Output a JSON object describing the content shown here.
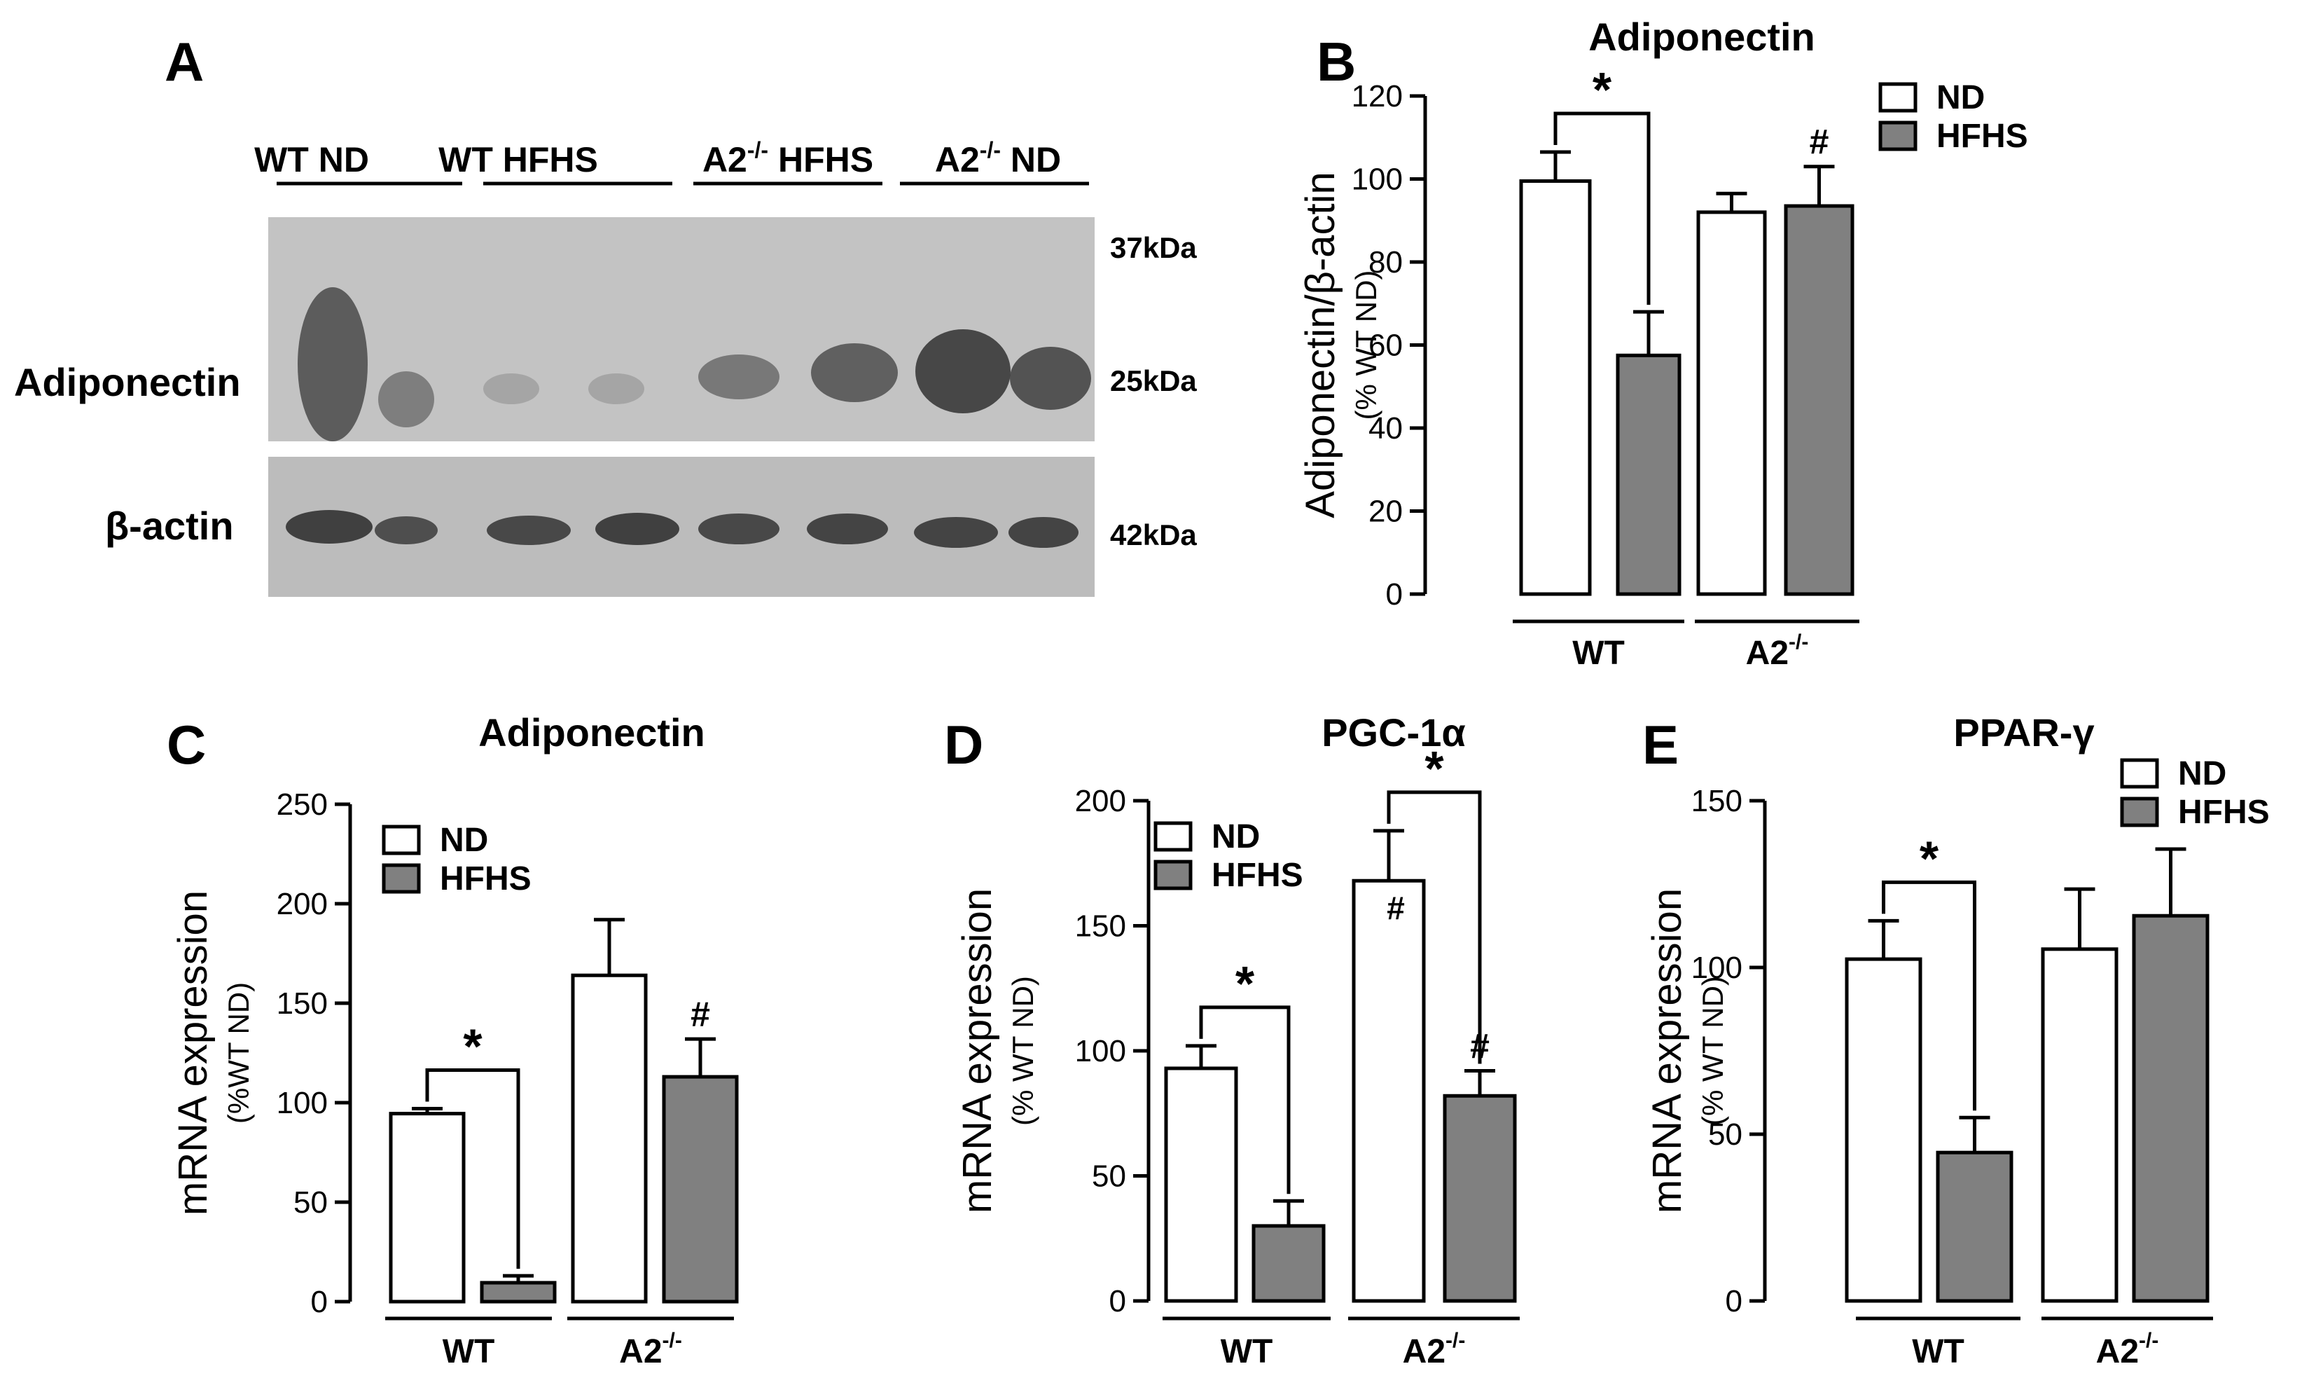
{
  "colors": {
    "nd_fill": "#ffffff",
    "hfhs_fill": "#808080",
    "stroke": "#000000",
    "blot_bg_top": "#c3c3c3",
    "blot_bg_bottom": "#bcbcbc",
    "band": "#3a3a3a"
  },
  "western_blot": {
    "panel_letter": "A",
    "groups": [
      {
        "main": "WT ND",
        "sup": ""
      },
      {
        "main": "WT HFHS",
        "sup": ""
      },
      {
        "main": "A2",
        "sup": "-/-",
        "after": " HFHS"
      },
      {
        "main": "A2",
        "sup": "-/-",
        "after": " ND"
      }
    ],
    "row_labels": [
      "Adiponectin",
      "β-actin"
    ],
    "markers": [
      "37kDa",
      "25kDa",
      "42kDa"
    ]
  },
  "chart_data": [
    {
      "panel": "B",
      "type": "bar",
      "title": "Adiponectin",
      "ylabel": "Adiponectin/β-actin",
      "ylabel2": "(% WT ND)",
      "ylim": [
        0,
        120
      ],
      "yticks": [
        0,
        20,
        40,
        60,
        80,
        100,
        120
      ],
      "groups": [
        {
          "main": "WT",
          "sup": ""
        },
        {
          "main": "A2",
          "sup": "-/-"
        }
      ],
      "legend": [
        "ND",
        "HFHS"
      ],
      "series": [
        {
          "name": "ND",
          "values": [
            99.5,
            92
          ],
          "errors": [
            7,
            4.5
          ]
        },
        {
          "name": "HFHS",
          "values": [
            57.5,
            93.5
          ],
          "errors": [
            10.5,
            9.5
          ]
        }
      ],
      "annotations": [
        {
          "symbol": "*",
          "type": "bracket",
          "group": 0
        },
        {
          "symbol": "#",
          "type": "marker",
          "group": 1,
          "series": 1
        }
      ]
    },
    {
      "panel": "C",
      "type": "bar",
      "title": "Adiponectin",
      "ylabel": "mRNA expression",
      "ylabel2": "(%WT ND)",
      "ylim": [
        0,
        250
      ],
      "yticks": [
        0,
        50,
        100,
        150,
        200,
        250
      ],
      "groups": [
        {
          "main": "WT",
          "sup": ""
        },
        {
          "main": "A2",
          "sup": "-/-"
        }
      ],
      "legend": [
        "ND",
        "HFHS"
      ],
      "series": [
        {
          "name": "ND",
          "values": [
            94.5,
            164
          ],
          "errors": [
            2.5,
            28
          ]
        },
        {
          "name": "HFHS",
          "values": [
            9.5,
            113
          ],
          "errors": [
            3.5,
            19
          ]
        }
      ],
      "annotations": [
        {
          "symbol": "*",
          "type": "bracket",
          "group": 0
        },
        {
          "symbol": "#",
          "type": "marker",
          "group": 1,
          "series": 1
        }
      ]
    },
    {
      "panel": "D",
      "type": "bar",
      "title": "PGC-1α",
      "ylabel": "mRNA expression",
      "ylabel2": "(% WT ND)",
      "ylim": [
        0,
        200
      ],
      "yticks": [
        0,
        50,
        100,
        150,
        200
      ],
      "groups": [
        {
          "main": "WT",
          "sup": ""
        },
        {
          "main": "A2",
          "sup": "-/-"
        }
      ],
      "legend": [
        "ND",
        "HFHS"
      ],
      "series": [
        {
          "name": "ND",
          "values": [
            93,
            168
          ],
          "errors": [
            9,
            20
          ]
        },
        {
          "name": "HFHS",
          "values": [
            30,
            82
          ],
          "errors": [
            10,
            10
          ]
        }
      ],
      "annotations": [
        {
          "symbol": "*",
          "type": "bracket",
          "group": 0
        },
        {
          "symbol": "*",
          "type": "bracket",
          "group": 1
        },
        {
          "symbol": "#",
          "type": "inner",
          "group": 1,
          "series": 0
        },
        {
          "symbol": "#",
          "type": "marker",
          "group": 1,
          "series": 1
        }
      ]
    },
    {
      "panel": "E",
      "type": "bar",
      "title": "PPAR-γ",
      "ylabel": "mRNA expression",
      "ylabel2": "(% WT ND)",
      "ylim": [
        0,
        150
      ],
      "yticks": [
        0,
        50,
        100,
        150
      ],
      "groups": [
        {
          "main": "WT",
          "sup": ""
        },
        {
          "main": "A2",
          "sup": "-/-"
        }
      ],
      "legend": [
        "ND",
        "HFHS"
      ],
      "series": [
        {
          "name": "ND",
          "values": [
            102.5,
            105.5
          ],
          "errors": [
            11.5,
            18
          ]
        },
        {
          "name": "HFHS",
          "values": [
            44.5,
            115.5
          ],
          "errors": [
            10.5,
            20
          ]
        }
      ],
      "annotations": [
        {
          "symbol": "*",
          "type": "bracket",
          "group": 0
        }
      ]
    }
  ]
}
